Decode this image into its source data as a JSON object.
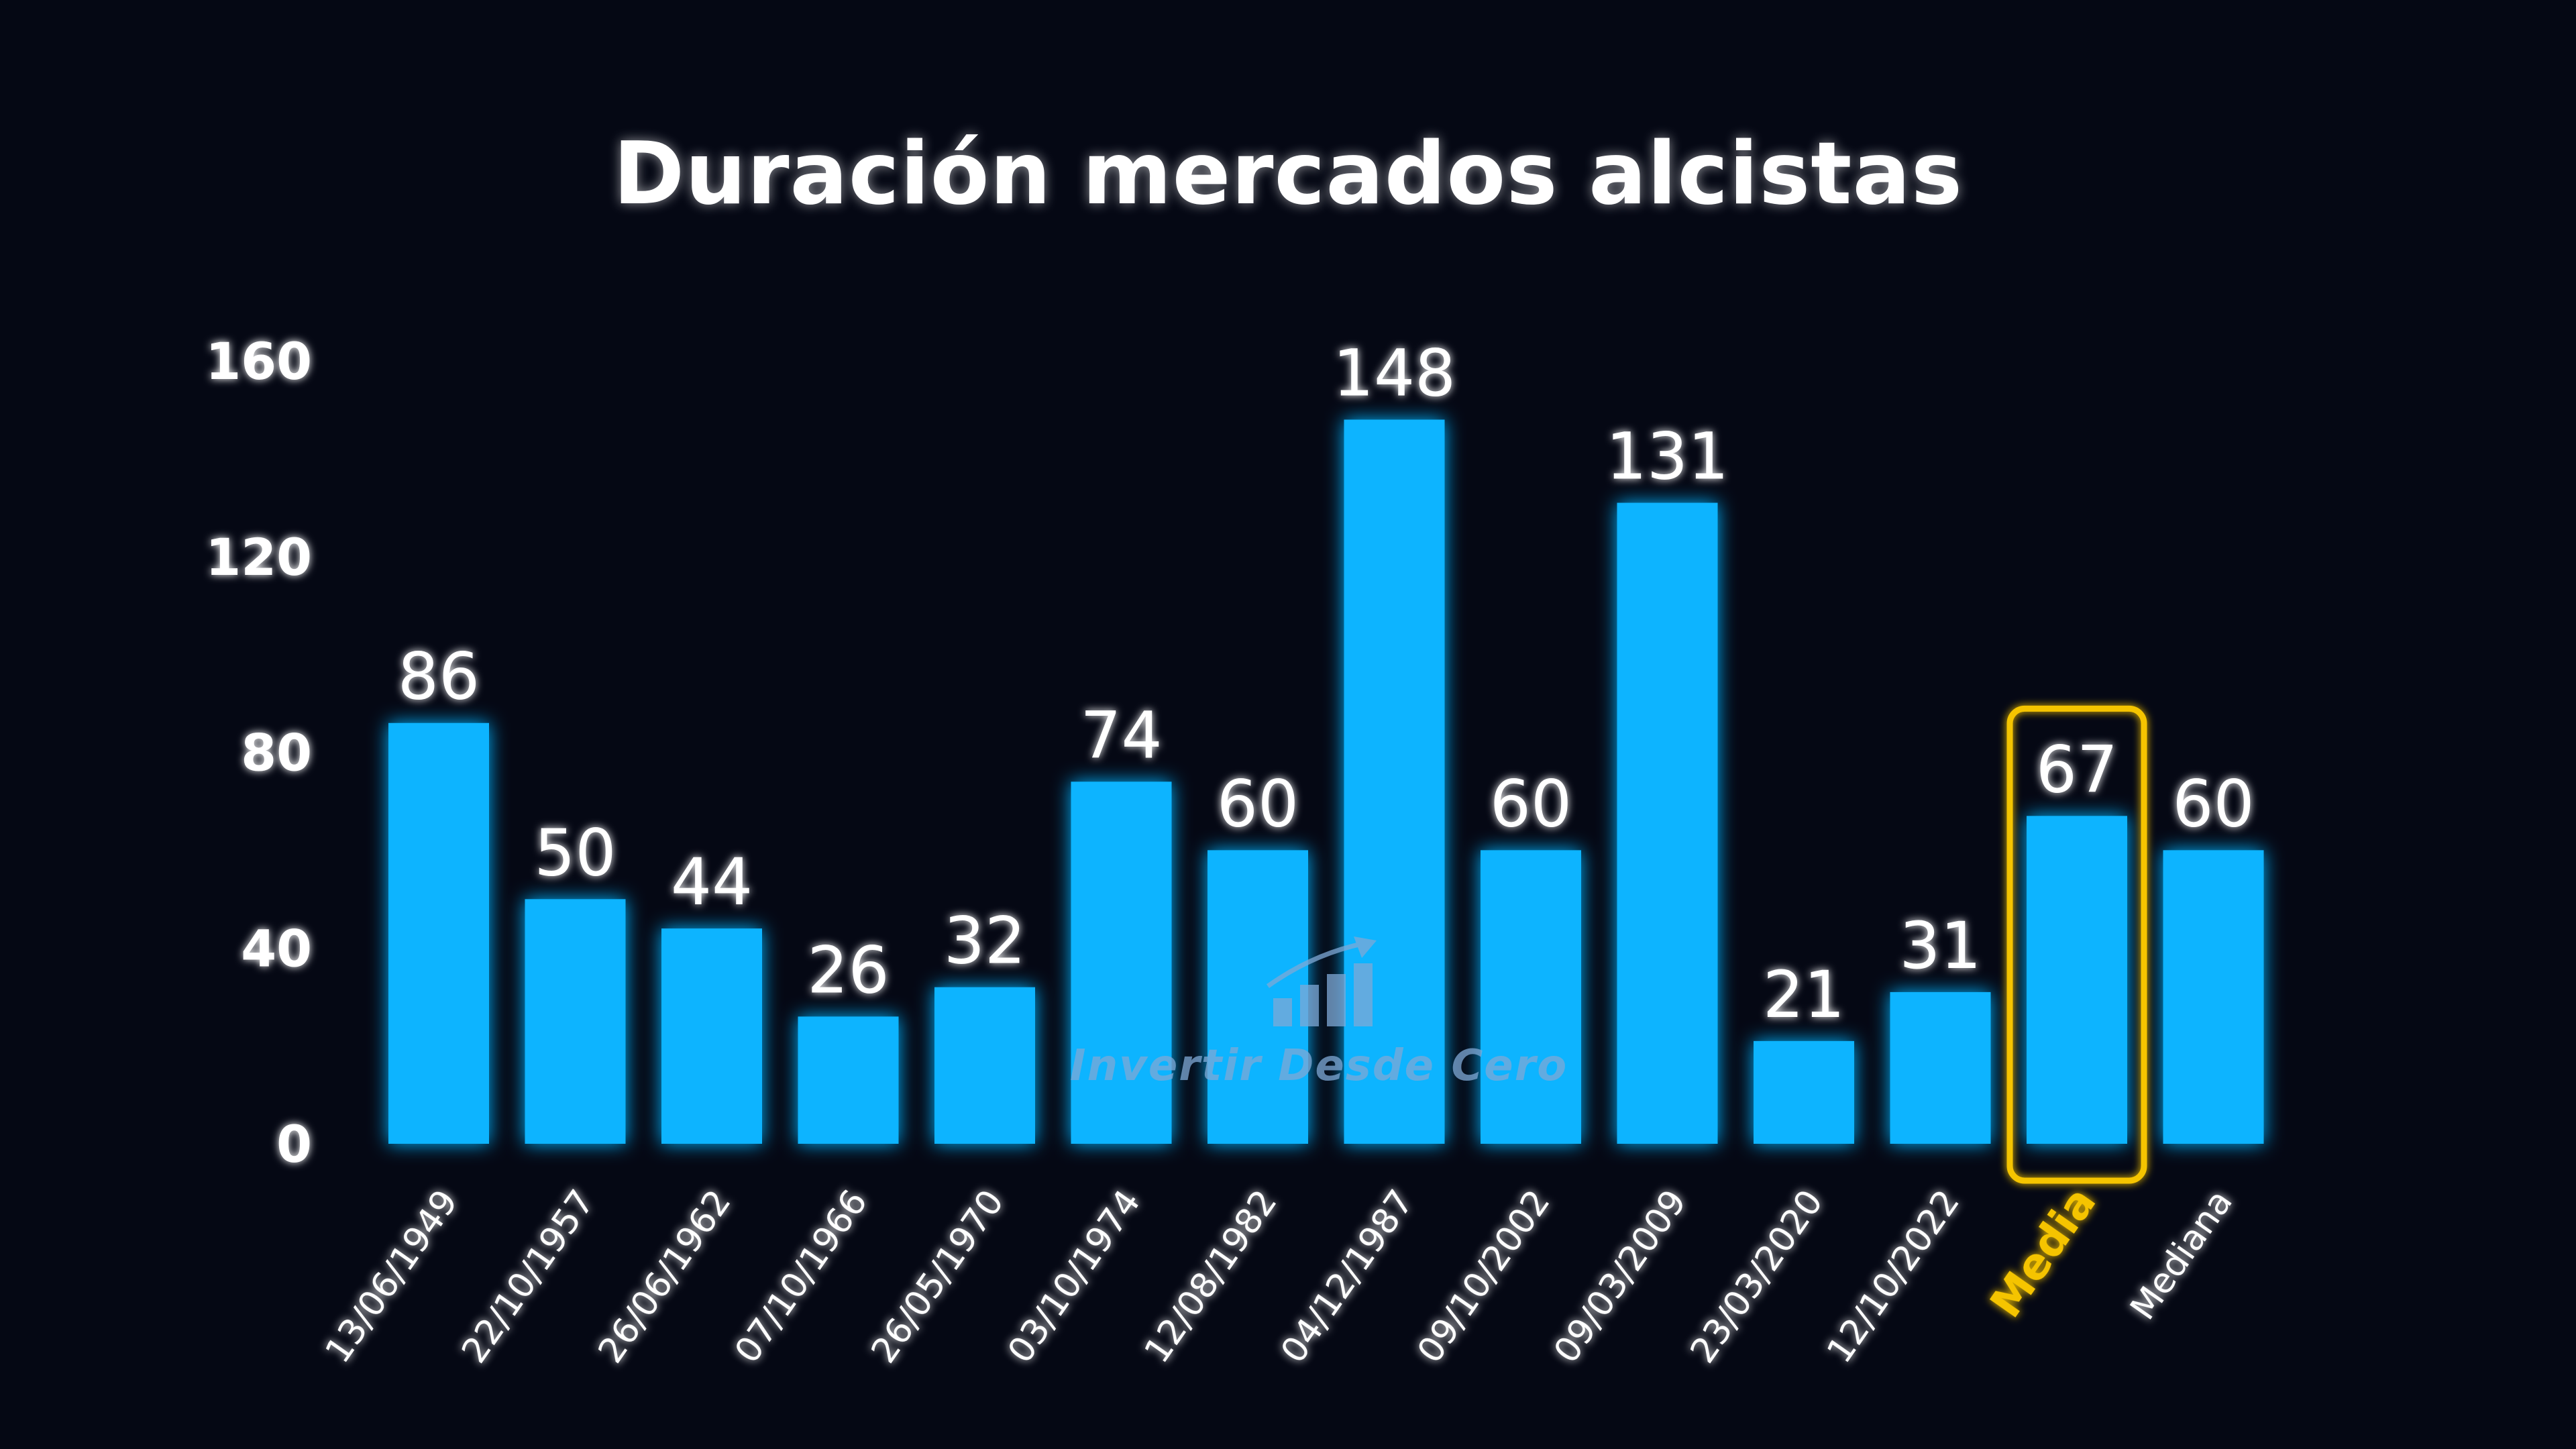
{
  "colors": {
    "background": "#050814",
    "bar": "#0db4ff",
    "axis": "#ffffff",
    "highlight": "#f5c400",
    "text": "#ffffff"
  },
  "watermark": {
    "text": "Invertir Desde Cero",
    "icon": "bar-chart-arrow-icon"
  },
  "chart_data": {
    "type": "bar",
    "title": "Duración mercados alcistas",
    "xlabel": "",
    "ylabel": "",
    "ylim": [
      0,
      160
    ],
    "yticks": [
      0,
      40,
      80,
      120,
      160
    ],
    "grid": false,
    "categories": [
      "13/06/1949",
      "22/10/1957",
      "26/06/1962",
      "07/10/1966",
      "26/05/1970",
      "03/10/1974",
      "12/08/1982",
      "04/12/1987",
      "09/10/2002",
      "09/03/2009",
      "23/03/2020",
      "12/10/2022",
      "Media",
      "Mediana"
    ],
    "values": [
      86,
      50,
      44,
      26,
      32,
      74,
      60,
      148,
      60,
      131,
      21,
      31,
      67,
      60
    ],
    "highlighted_category": "Media"
  }
}
